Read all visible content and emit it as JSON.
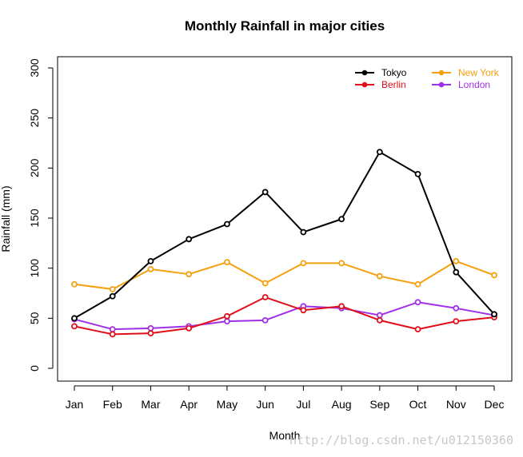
{
  "chart_data": {
    "type": "line",
    "title": "Monthly Rainfall in major cities",
    "xlabel": "Month",
    "ylabel": "Rainfall (mm)",
    "ylim": [
      0,
      300
    ],
    "yticks": [
      0,
      50,
      100,
      150,
      200,
      250,
      300
    ],
    "categories": [
      "Jan",
      "Feb",
      "Mar",
      "Apr",
      "May",
      "Jun",
      "Jul",
      "Aug",
      "Sep",
      "Oct",
      "Nov",
      "Dec"
    ],
    "legend_position": "top-right",
    "series": [
      {
        "name": "Tokyo",
        "color": "#000000",
        "values": [
          50,
          72,
          107,
          129,
          144,
          176,
          136,
          149,
          216,
          194,
          96,
          54
        ]
      },
      {
        "name": "Berlin",
        "color": "#e0101a",
        "values": [
          42,
          34,
          35,
          40,
          52,
          71,
          58,
          62,
          48,
          39,
          47,
          51
        ]
      },
      {
        "name": "New York",
        "color": "#f5a00f",
        "values": [
          84,
          79,
          99,
          94,
          106,
          85,
          105,
          105,
          92,
          84,
          107,
          93
        ]
      },
      {
        "name": "London",
        "color": "#a030e8",
        "values": [
          49,
          39,
          40,
          42,
          47,
          48,
          62,
          60,
          53,
          66,
          60,
          53
        ]
      }
    ]
  },
  "watermark": "http://blog.csdn.net/u012150360"
}
